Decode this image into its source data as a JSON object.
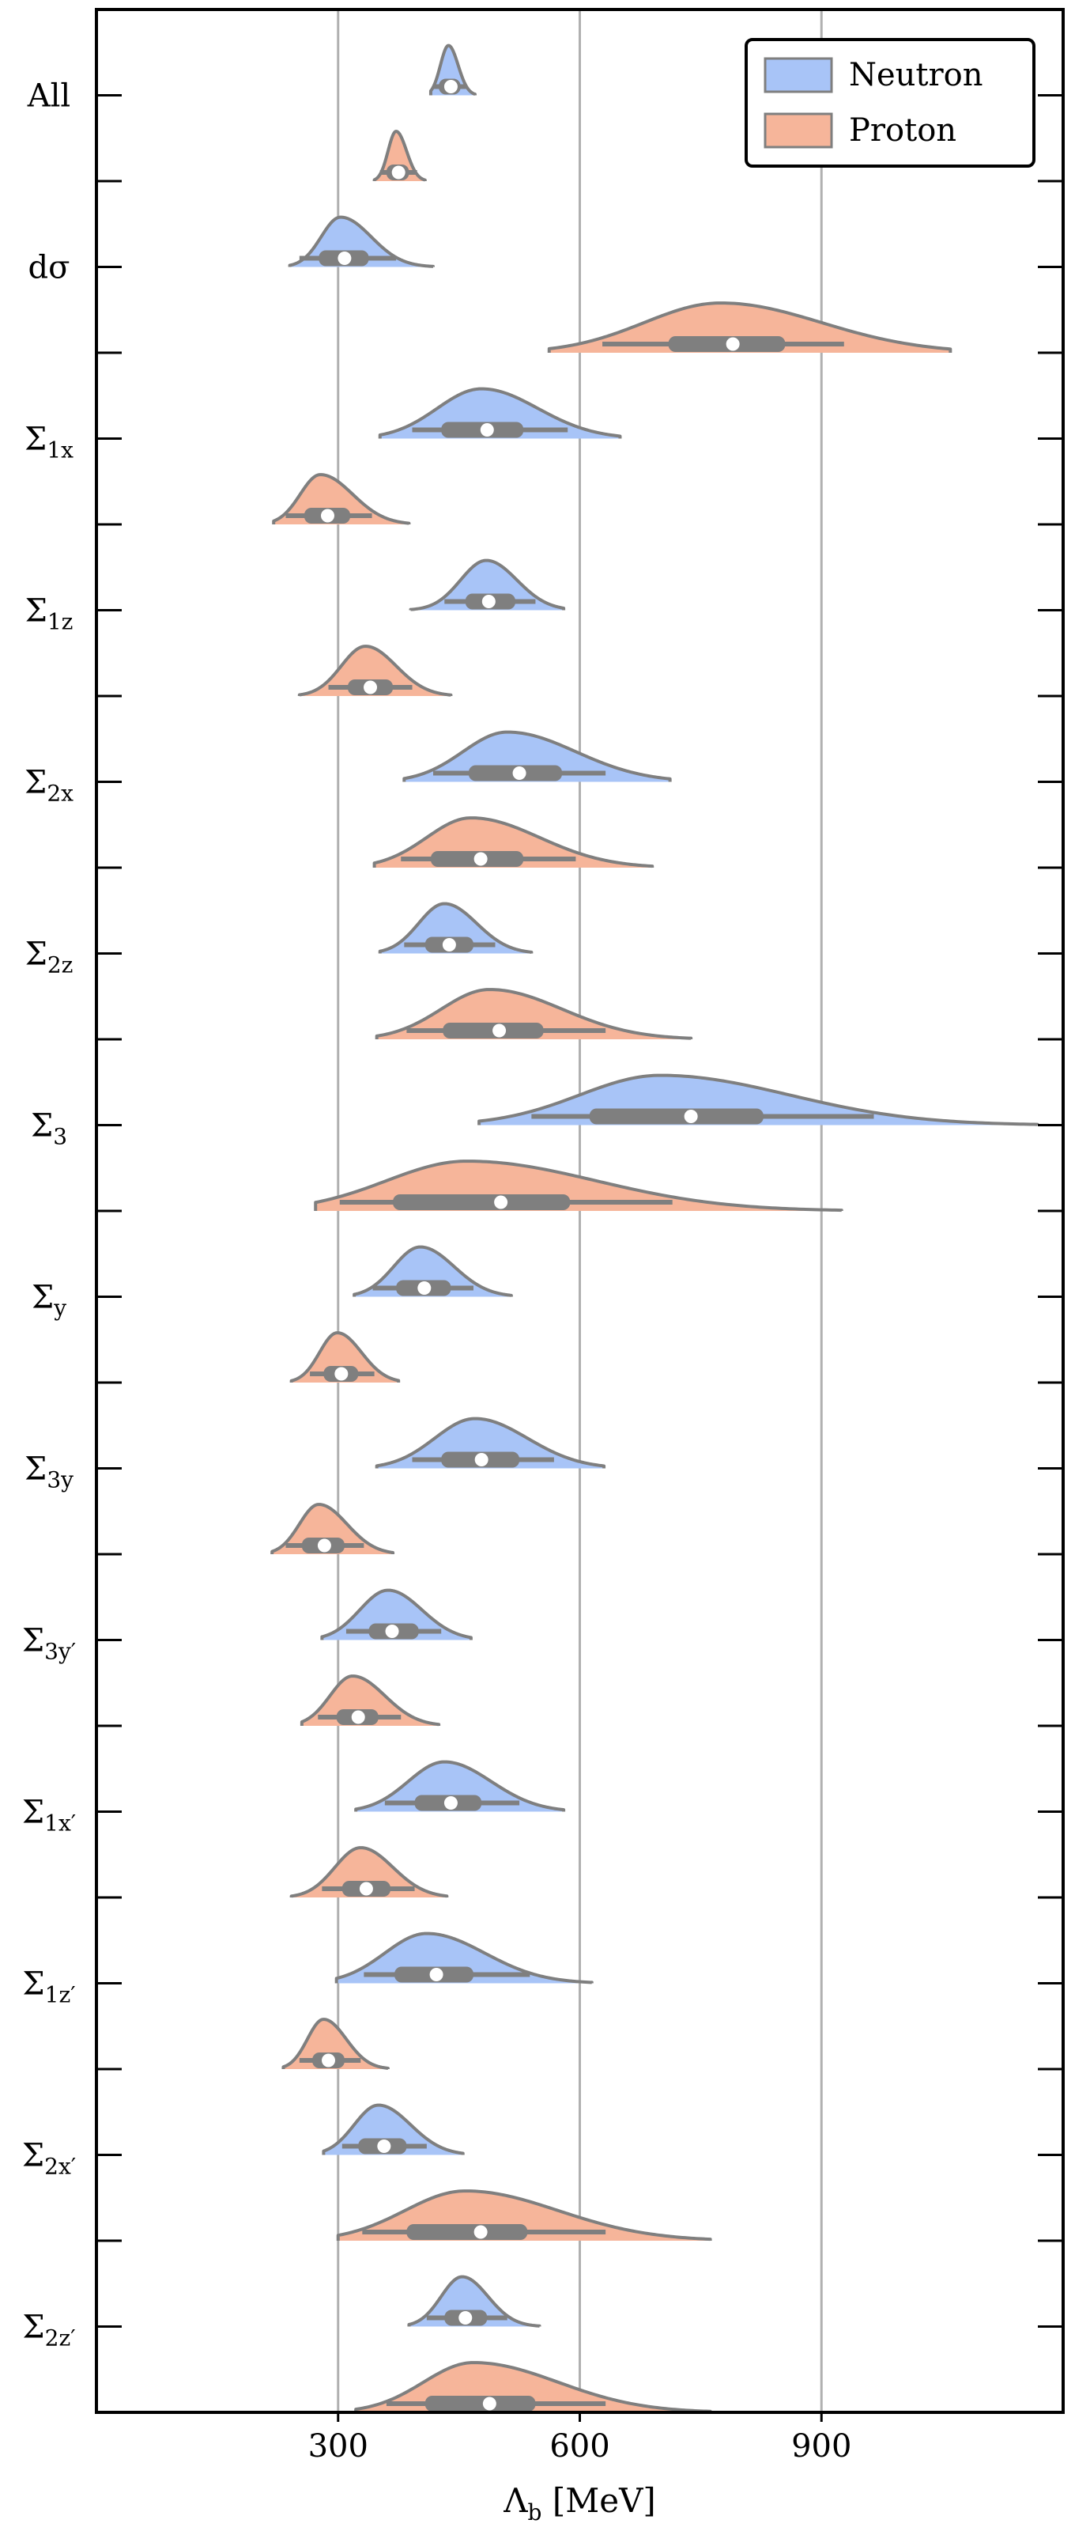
{
  "chart_data": {
    "type": "violin",
    "title": "",
    "xlabel_main": "Λ",
    "xlabel_sub": "b",
    "xlabel_unit": "[MeV]",
    "ylabel": "",
    "xlim": [
      0,
      1200
    ],
    "x_ticks": [
      300,
      600,
      900
    ],
    "x_tick_labels": [
      "300",
      "600",
      "900"
    ],
    "grid": "vertical",
    "legend_position": "top-right",
    "colors": {
      "Neutron": "#a8c4f7",
      "Proton": "#f6b59a",
      "outline": "#7f7f7f",
      "box": "#7f7f7f",
      "grid": "#b0b0b0"
    },
    "legend": [
      {
        "name": "Neutron",
        "label": "Neutron"
      },
      {
        "name": "Proton",
        "label": "Proton"
      }
    ],
    "groups": [
      {
        "label_main": "All",
        "label_sub": "",
        "neutron": {
          "median": 440,
          "q1": 425,
          "q3": 452,
          "lo": 418,
          "hi": 460,
          "mode": 437,
          "min": 415,
          "max": 470,
          "sl": 10,
          "sr": 12
        },
        "proton": {
          "median": 375,
          "q1": 360,
          "q3": 388,
          "lo": 352,
          "hi": 398,
          "mode": 372,
          "min": 345,
          "max": 408,
          "sl": 10,
          "sr": 13
        }
      },
      {
        "label_main": "dσ",
        "label_sub": "",
        "neutron": {
          "median": 308,
          "q1": 276,
          "q3": 338,
          "lo": 252,
          "hi": 372,
          "mode": 303,
          "min": 240,
          "max": 418,
          "sl": 24,
          "sr": 38
        },
        "proton": {
          "median": 790,
          "q1": 710,
          "q3": 855,
          "lo": 628,
          "hi": 928,
          "mode": 775,
          "min": 562,
          "max": 1060,
          "sl": 95,
          "sr": 125
        }
      },
      {
        "label_main": "Σ",
        "label_sub": "1x",
        "neutron": {
          "median": 485,
          "q1": 428,
          "q3": 530,
          "lo": 392,
          "hi": 585,
          "mode": 478,
          "min": 352,
          "max": 650,
          "sl": 55,
          "sr": 70
        },
        "proton": {
          "median": 287,
          "q1": 258,
          "q3": 315,
          "lo": 235,
          "hi": 342,
          "mode": 278,
          "min": 220,
          "max": 388,
          "sl": 25,
          "sr": 40
        }
      },
      {
        "label_main": "Σ",
        "label_sub": "1z",
        "neutron": {
          "median": 487,
          "q1": 458,
          "q3": 520,
          "lo": 432,
          "hi": 545,
          "mode": 484,
          "min": 390,
          "max": 580,
          "sl": 32,
          "sr": 38
        },
        "proton": {
          "median": 340,
          "q1": 312,
          "q3": 368,
          "lo": 288,
          "hi": 392,
          "mode": 334,
          "min": 252,
          "max": 440,
          "sl": 30,
          "sr": 38
        }
      },
      {
        "label_main": "Σ",
        "label_sub": "2x",
        "neutron": {
          "median": 525,
          "q1": 462,
          "q3": 578,
          "lo": 418,
          "hi": 632,
          "mode": 510,
          "min": 382,
          "max": 712,
          "sl": 55,
          "sr": 85
        },
        "proton": {
          "median": 477,
          "q1": 415,
          "q3": 530,
          "lo": 378,
          "hi": 595,
          "mode": 465,
          "min": 345,
          "max": 690,
          "sl": 55,
          "sr": 85
        }
      },
      {
        "label_main": "Σ",
        "label_sub": "2z",
        "neutron": {
          "median": 438,
          "q1": 408,
          "q3": 468,
          "lo": 382,
          "hi": 495,
          "mode": 432,
          "min": 352,
          "max": 540,
          "sl": 32,
          "sr": 40
        },
        "proton": {
          "median": 500,
          "q1": 430,
          "q3": 555,
          "lo": 385,
          "hi": 632,
          "mode": 488,
          "min": 348,
          "max": 738,
          "sl": 60,
          "sr": 90
        }
      },
      {
        "label_main": "Σ",
        "label_sub": "3",
        "neutron": {
          "median": 738,
          "q1": 612,
          "q3": 828,
          "lo": 540,
          "hi": 965,
          "mode": 700,
          "min": 475,
          "max": 1168,
          "sl": 100,
          "sr": 160
        },
        "proton": {
          "median": 502,
          "q1": 368,
          "q3": 588,
          "lo": 302,
          "hi": 715,
          "mode": 460,
          "min": 272,
          "max": 925,
          "sl": 100,
          "sr": 160
        }
      },
      {
        "label_main": "Σ",
        "label_sub": "y",
        "neutron": {
          "median": 407,
          "q1": 372,
          "q3": 440,
          "lo": 343,
          "hi": 468,
          "mode": 402,
          "min": 320,
          "max": 515,
          "sl": 33,
          "sr": 42
        },
        "proton": {
          "median": 304,
          "q1": 282,
          "q3": 325,
          "lo": 265,
          "hi": 345,
          "mode": 299,
          "min": 242,
          "max": 375,
          "sl": 22,
          "sr": 30
        }
      },
      {
        "label_main": "Σ",
        "label_sub": "3y",
        "neutron": {
          "median": 478,
          "q1": 428,
          "q3": 525,
          "lo": 392,
          "hi": 568,
          "mode": 470,
          "min": 348,
          "max": 630,
          "sl": 50,
          "sr": 65
        },
        "proton": {
          "median": 283,
          "q1": 255,
          "q3": 308,
          "lo": 235,
          "hi": 332,
          "mode": 276,
          "min": 218,
          "max": 368,
          "sl": 24,
          "sr": 35
        }
      },
      {
        "label_main": "Σ",
        "label_sub": "3y′",
        "neutron": {
          "median": 367,
          "q1": 338,
          "q3": 400,
          "lo": 310,
          "hi": 428,
          "mode": 362,
          "min": 280,
          "max": 465,
          "sl": 35,
          "sr": 42
        },
        "proton": {
          "median": 325,
          "q1": 298,
          "q3": 350,
          "lo": 275,
          "hi": 378,
          "mode": 318,
          "min": 255,
          "max": 425,
          "sl": 28,
          "sr": 40
        }
      },
      {
        "label_main": "Σ",
        "label_sub": "1x′",
        "neutron": {
          "median": 440,
          "q1": 395,
          "q3": 478,
          "lo": 358,
          "hi": 525,
          "mode": 432,
          "min": 322,
          "max": 580,
          "sl": 45,
          "sr": 58
        },
        "proton": {
          "median": 335,
          "q1": 305,
          "q3": 365,
          "lo": 280,
          "hi": 395,
          "mode": 328,
          "min": 242,
          "max": 435,
          "sl": 32,
          "sr": 40
        }
      },
      {
        "label_main": "Σ",
        "label_sub": "1z′",
        "neutron": {
          "median": 422,
          "q1": 370,
          "q3": 468,
          "lo": 332,
          "hi": 538,
          "mode": 410,
          "min": 298,
          "max": 615,
          "sl": 52,
          "sr": 72
        },
        "proton": {
          "median": 288,
          "q1": 268,
          "q3": 308,
          "lo": 252,
          "hi": 328,
          "mode": 282,
          "min": 232,
          "max": 362,
          "sl": 20,
          "sr": 28
        }
      },
      {
        "label_main": "Σ",
        "label_sub": "2x′",
        "neutron": {
          "median": 357,
          "q1": 325,
          "q3": 385,
          "lo": 305,
          "hi": 410,
          "mode": 350,
          "min": 282,
          "max": 455,
          "sl": 30,
          "sr": 40
        },
        "proton": {
          "median": 477,
          "q1": 385,
          "q3": 535,
          "lo": 330,
          "hi": 632,
          "mode": 458,
          "min": 300,
          "max": 762,
          "sl": 75,
          "sr": 115
        }
      },
      {
        "label_main": "Σ",
        "label_sub": "2z′",
        "neutron": {
          "median": 458,
          "q1": 432,
          "q3": 485,
          "lo": 410,
          "hi": 510,
          "mode": 454,
          "min": 388,
          "max": 550,
          "sl": 26,
          "sr": 32
        },
        "proton": {
          "median": 488,
          "q1": 408,
          "q3": 545,
          "lo": 360,
          "hi": 632,
          "mode": 468,
          "min": 322,
          "max": 762,
          "sl": 62,
          "sr": 105
        }
      }
    ]
  }
}
